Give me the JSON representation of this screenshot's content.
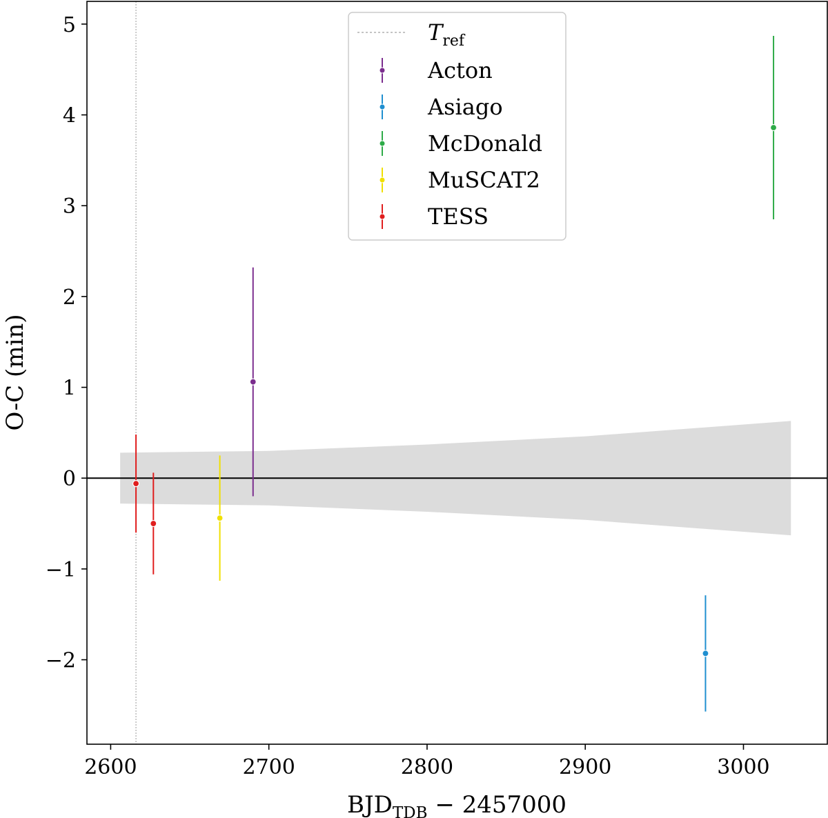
{
  "chart_data": {
    "type": "scatter",
    "xlabel": "BJD",
    "xlabel_sub": "TDB",
    "xlabel_rest": " − 2457000",
    "ylabel": "O-C (min)",
    "xlim": [
      2585,
      3053
    ],
    "ylim": [
      -2.93,
      5.25
    ],
    "xticks": [
      2600,
      2700,
      2800,
      2900,
      3000
    ],
    "yticks": [
      -2,
      -1,
      0,
      1,
      2,
      3,
      4,
      5
    ],
    "ytick_labels": [
      "−2",
      "−1",
      "0",
      "1",
      "2",
      "3",
      "4",
      "5"
    ],
    "reference_line": {
      "label": "T",
      "label_sub": "ref",
      "x": 2616,
      "style": "dotted",
      "color": "#b0b0b0"
    },
    "zero_line": {
      "y": 0,
      "color": "#000000"
    },
    "uncertainty_band": {
      "color": "#dcdcdc",
      "x": [
        2606,
        2700,
        2800,
        2900,
        3030
      ],
      "upper": [
        0.28,
        0.3,
        0.37,
        0.46,
        0.63
      ],
      "lower": [
        -0.28,
        -0.3,
        -0.37,
        -0.46,
        -0.63
      ]
    },
    "series": [
      {
        "name": "Acton",
        "color": "#7b2d8e",
        "points": [
          {
            "x": 2690,
            "y": 1.06,
            "err": 1.26
          }
        ]
      },
      {
        "name": "Asiago",
        "color": "#1f8fd0",
        "points": [
          {
            "x": 2976,
            "y": -1.93,
            "err": 0.64
          }
        ]
      },
      {
        "name": "McDonald",
        "color": "#2eab48",
        "points": [
          {
            "x": 3019,
            "y": 3.86,
            "err": 1.01
          }
        ]
      },
      {
        "name": "MuSCAT2",
        "color": "#f0e000",
        "points": [
          {
            "x": 2669,
            "y": -0.44,
            "err": 0.69
          }
        ]
      },
      {
        "name": "TESS",
        "color": "#e01e1e",
        "points": [
          {
            "x": 2616,
            "y": -0.06,
            "err": 0.54
          },
          {
            "x": 2627,
            "y": -0.5,
            "err": 0.56
          }
        ]
      }
    ],
    "legend_position": "upper-center",
    "grid": false
  }
}
